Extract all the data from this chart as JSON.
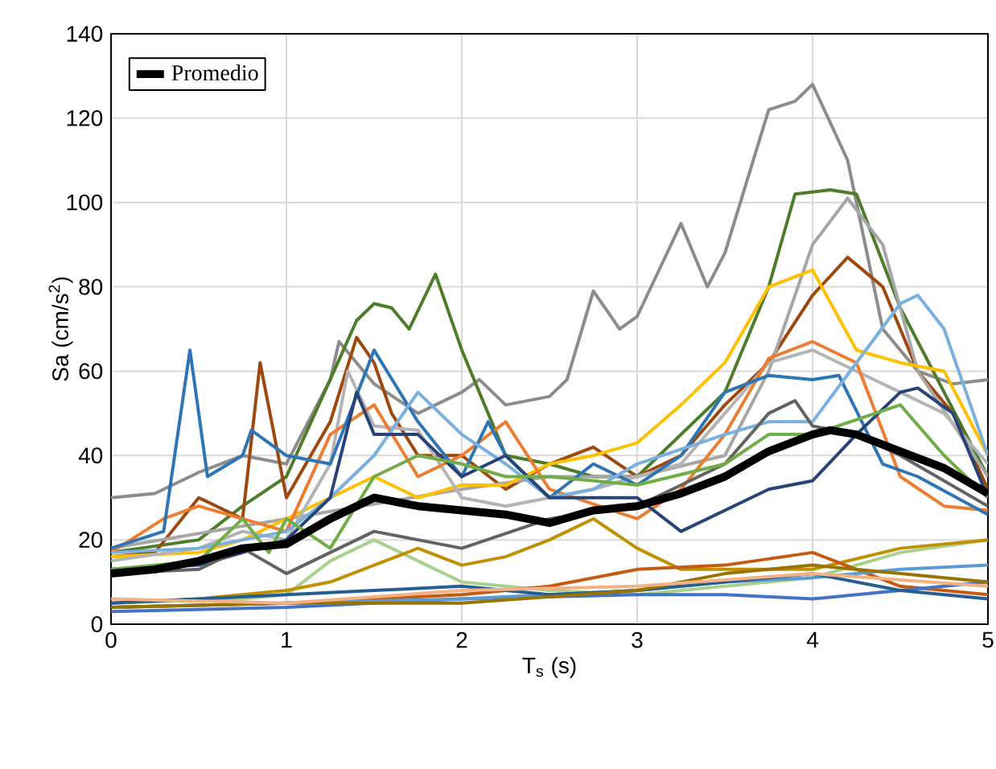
{
  "chart_data": {
    "type": "line",
    "xlabel": "T$_{s}$ (s)",
    "ylabel": "Sa (cm/s$^{2}$)",
    "xlim": [
      0,
      5
    ],
    "ylim": [
      0,
      140
    ],
    "xticks": [
      0,
      1,
      2,
      3,
      4,
      5
    ],
    "yticks": [
      0,
      20,
      40,
      60,
      80,
      100,
      120,
      140
    ],
    "grid": true,
    "legend": "top left",
    "marker": "none",
    "line_style": "solid",
    "series": [
      {
        "color": "#8c8c8c",
        "x": [
          0,
          0.25,
          0.5,
          0.75,
          1.0,
          1.25,
          1.3,
          1.5,
          1.75,
          2.0,
          2.1,
          2.25,
          2.5,
          2.6,
          2.75,
          2.9,
          3.0,
          3.25,
          3.4,
          3.5,
          3.75,
          3.9,
          4.0,
          4.2,
          4.4,
          4.6,
          4.8,
          5.0
        ],
        "values": [
          30,
          31,
          36,
          40,
          38,
          58,
          67,
          57,
          50,
          55,
          58,
          52,
          54,
          58,
          79,
          70,
          73,
          95,
          80,
          88,
          122,
          124,
          128,
          110,
          70,
          60,
          57,
          58
        ]
      },
      {
        "color": "#4d7c2b",
        "x": [
          0,
          0.5,
          0.75,
          1.0,
          1.25,
          1.4,
          1.5,
          1.6,
          1.7,
          1.85,
          2.0,
          2.25,
          2.5,
          2.75,
          3.0,
          3.25,
          3.5,
          3.75,
          3.9,
          4.1,
          4.25,
          4.5,
          4.75,
          5.0
        ],
        "values": [
          17,
          20,
          28,
          35,
          58,
          72,
          76,
          75,
          70,
          83,
          65,
          40,
          38,
          35,
          35,
          45,
          55,
          80,
          102,
          103,
          102,
          75,
          55,
          35
        ]
      },
      {
        "color": "#9e480e",
        "x": [
          0,
          0.25,
          0.5,
          0.75,
          0.85,
          1.0,
          1.25,
          1.4,
          1.5,
          1.6,
          1.75,
          2.0,
          2.25,
          2.5,
          2.75,
          3.0,
          3.25,
          3.5,
          3.75,
          4.0,
          4.2,
          4.4,
          4.6,
          4.8,
          5.0
        ],
        "values": [
          16,
          17,
          30,
          25,
          62,
          30,
          48,
          68,
          62,
          50,
          40,
          40,
          32,
          38,
          42,
          35,
          40,
          52,
          62,
          78,
          87,
          80,
          60,
          50,
          32
        ]
      },
      {
        "color": "#a6a6a6",
        "x": [
          0,
          1.0,
          2.0,
          2.5,
          3.0,
          3.5,
          3.75,
          4.0,
          4.2,
          4.4,
          4.6,
          5.0
        ],
        "values": [
          18,
          25,
          32,
          35,
          35,
          40,
          60,
          90,
          101,
          90,
          60,
          35
        ]
      },
      {
        "color": "#ffc000",
        "x": [
          0,
          0.5,
          0.75,
          1.0,
          1.25,
          1.5,
          1.75,
          2.0,
          2.25,
          2.5,
          2.75,
          3.0,
          3.25,
          3.5,
          3.75,
          4.0,
          4.25,
          4.5,
          4.75,
          5.0
        ],
        "values": [
          16,
          17,
          20,
          null,
          30,
          35,
          30,
          33,
          33,
          38,
          40,
          43,
          52,
          62,
          80,
          84,
          65,
          62,
          60,
          40
        ]
      },
      {
        "color": "#b4b4b4",
        "x": [
          0,
          0.5,
          0.75,
          1.0,
          1.25,
          1.35,
          1.5,
          1.75,
          2.0,
          2.25,
          2.5,
          2.75,
          3.0,
          3.25,
          3.5,
          3.75,
          4.0,
          4.25,
          4.5,
          4.75,
          5.0
        ],
        "values": [
          15,
          18,
          22,
          20,
          38,
          60,
          47,
          46,
          30,
          28,
          30,
          32,
          35,
          38,
          50,
          62,
          65,
          60,
          55,
          50,
          38
        ]
      },
      {
        "color": "#ed7d31",
        "x": [
          0,
          0.3,
          0.5,
          0.75,
          1.0,
          1.25,
          1.5,
          1.75,
          2.0,
          2.25,
          2.5,
          3.0,
          3.25,
          3.5,
          3.75,
          4.0,
          4.25,
          4.5,
          4.75,
          5.0
        ],
        "values": [
          17,
          25,
          28,
          25,
          22,
          45,
          52,
          35,
          40,
          48,
          32,
          25,
          32,
          45,
          63,
          67,
          62,
          35,
          28,
          27
        ]
      },
      {
        "color": "#2e75b6",
        "x": [
          0,
          0.3,
          0.45,
          0.55,
          0.75,
          0.8,
          1.0,
          1.25,
          1.5,
          1.75,
          2.0,
          2.15,
          2.25,
          2.5,
          2.75,
          3.0,
          3.25,
          3.5,
          3.75,
          4.0,
          4.15,
          4.4,
          4.6,
          5.0
        ],
        "values": [
          18,
          22,
          65,
          35,
          40,
          46,
          40,
          38,
          65,
          48,
          35,
          48,
          40,
          30,
          38,
          33,
          40,
          55,
          59,
          58,
          59,
          38,
          35,
          26
        ]
      },
      {
        "color": "#7ab0e0",
        "x": [
          0,
          0.5,
          1.0,
          1.25,
          1.5,
          1.75,
          2.0,
          2.25,
          2.5,
          2.75,
          3.0,
          3.5,
          3.75,
          4.0,
          4.25,
          4.5,
          4.6,
          4.75,
          5.0
        ],
        "values": [
          17,
          18,
          22,
          30,
          40,
          55,
          45,
          38,
          30,
          32,
          38,
          45,
          48,
          48,
          62,
          76,
          78,
          70,
          40
        ]
      },
      {
        "color": "#264478",
        "x": [
          0,
          0.5,
          1.0,
          1.25,
          1.4,
          1.5,
          1.75,
          2.0,
          2.25,
          2.5,
          3.0,
          3.25,
          3.5,
          3.75,
          4.0,
          4.25,
          4.5,
          4.6,
          4.8,
          5.0
        ],
        "values": [
          13,
          14,
          20,
          30,
          55,
          45,
          45,
          35,
          40,
          30,
          30,
          22,
          27,
          32,
          34,
          45,
          55,
          56,
          50,
          30
        ]
      },
      {
        "color": "#636363",
        "x": [
          0,
          0.5,
          0.75,
          1.0,
          1.5,
          1.75,
          2.0,
          2.5,
          3.0,
          3.5,
          3.75,
          3.9,
          4.0,
          4.25,
          4.5,
          5.0
        ],
        "values": [
          12,
          13,
          18,
          12,
          22,
          20,
          18,
          25,
          28,
          38,
          50,
          53,
          47,
          45,
          40,
          28
        ]
      },
      {
        "color": "#70ad47",
        "x": [
          0,
          0.5,
          0.75,
          0.9,
          1.0,
          1.25,
          1.5,
          1.75,
          2.0,
          2.25,
          2.5,
          3.0,
          3.5,
          3.75,
          4.0,
          4.5,
          4.75,
          5.0
        ],
        "values": [
          13,
          15,
          25,
          17,
          25,
          18,
          35,
          40,
          38,
          35,
          35,
          33,
          38,
          45,
          45,
          52,
          40,
          30
        ]
      },
      {
        "color": "#a9d18e",
        "x": [
          0,
          0.75,
          1.0,
          1.25,
          1.5,
          1.75,
          2.0,
          2.5,
          3.0,
          3.5,
          4.0,
          4.5,
          5.0
        ],
        "values": [
          5,
          6,
          7,
          15,
          20,
          15,
          10,
          8,
          7,
          9,
          11,
          17,
          20
        ]
      },
      {
        "color": "#bf9000",
        "x": [
          0,
          0.5,
          1.0,
          1.25,
          1.5,
          1.75,
          2.0,
          2.25,
          2.5,
          2.75,
          3.0,
          3.25,
          3.5,
          4.0,
          4.5,
          4.75,
          5.0
        ],
        "values": [
          5,
          6,
          8,
          10,
          14,
          18,
          14,
          16,
          20,
          25,
          18,
          13,
          13,
          13,
          18,
          19,
          20
        ]
      },
      {
        "color": "#c55a11",
        "x": [
          0,
          1,
          2,
          2.5,
          3.0,
          3.5,
          4.0,
          4.5,
          5.0
        ],
        "values": [
          4,
          5,
          7,
          9,
          13,
          14,
          17,
          9,
          7
        ]
      },
      {
        "color": "#4472c4",
        "x": [
          0,
          1,
          2,
          3,
          3.5,
          4.0,
          4.5,
          5.0
        ],
        "values": [
          3,
          4,
          6,
          7,
          7,
          6,
          8,
          10
        ]
      },
      {
        "color": "#5b9bd5",
        "x": [
          0,
          1,
          2,
          3,
          3.5,
          4,
          4.5,
          5.0
        ],
        "values": [
          4,
          5,
          6,
          8,
          10,
          11,
          13,
          14
        ]
      },
      {
        "color": "#255e91",
        "x": [
          0,
          1,
          1.5,
          2,
          2.5,
          3,
          4,
          4.5,
          5
        ],
        "values": [
          5,
          7,
          8,
          9,
          7,
          8,
          12,
          8,
          6
        ]
      },
      {
        "color": "#997300",
        "x": [
          0,
          1,
          2,
          3,
          3.5,
          4,
          4.5,
          5
        ],
        "values": [
          4,
          5,
          5,
          8,
          12,
          14,
          12,
          10
        ]
      },
      {
        "color": "#f4b183",
        "x": [
          0,
          1,
          2,
          3,
          4,
          5
        ],
        "values": [
          6,
          5,
          8,
          9,
          12,
          9
        ]
      },
      {
        "name": "Promedio",
        "color": "#000000",
        "x": [
          0,
          0.25,
          0.5,
          0.75,
          1.0,
          1.25,
          1.5,
          1.75,
          2.0,
          2.25,
          2.5,
          2.75,
          3.0,
          3.25,
          3.5,
          3.75,
          4.0,
          4.1,
          4.25,
          4.5,
          4.75,
          5.0
        ],
        "values": [
          12,
          13,
          15,
          18,
          19,
          25,
          30,
          28,
          27,
          26,
          24,
          27,
          28,
          31,
          35,
          41,
          45,
          46,
          45,
          41,
          37,
          31
        ]
      }
    ]
  }
}
